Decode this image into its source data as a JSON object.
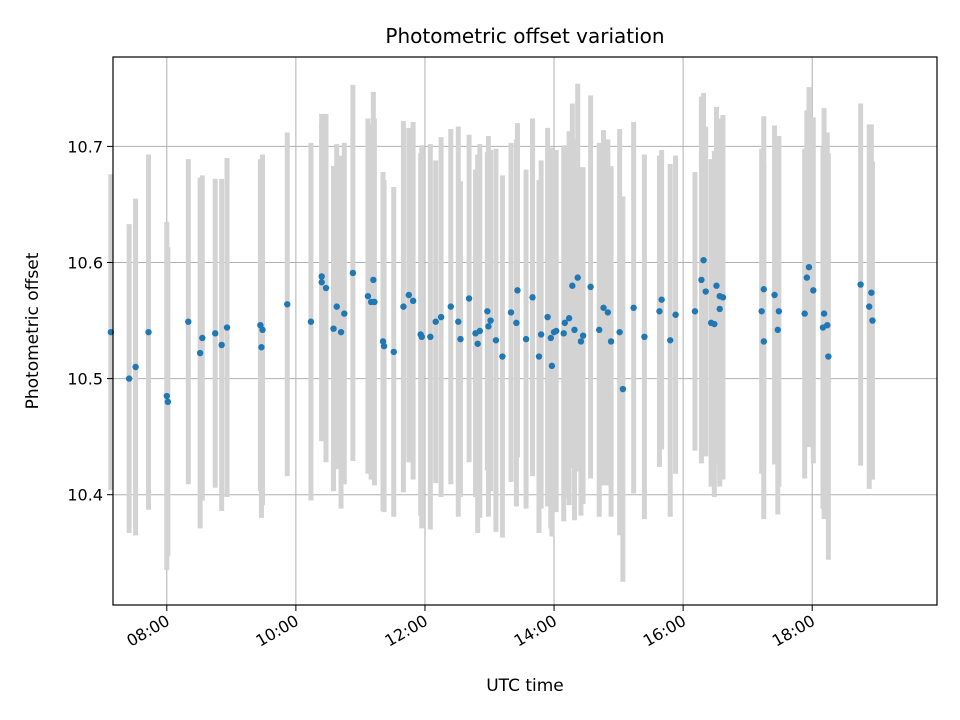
{
  "chart_data": {
    "type": "scatter",
    "title": "Photometric offset variation",
    "xlabel": "UTC time",
    "ylabel": "Photometric offset",
    "grid": true,
    "legend": "none",
    "xlim": [
      "07:10",
      "19:56"
    ],
    "ylim": [
      10.305,
      10.777
    ],
    "x_ticks": [
      "08:00",
      "10:00",
      "12:00",
      "14:00",
      "16:00",
      "18:00"
    ],
    "y_ticks": [
      "10.4",
      "10.5",
      "10.6",
      "10.7"
    ],
    "colors": {
      "points": "#1f77b4",
      "errorbars": "#d3d3d3",
      "grid": "#b0b0b0"
    },
    "series": [
      {
        "x": [
          "07:08",
          "07:25",
          "07:31",
          "07:43",
          "08:00",
          "08:01",
          "08:20",
          "08:31",
          "08:33",
          "08:45",
          "08:51",
          "08:56",
          "09:27",
          "09:28",
          "09:29",
          "09:52",
          "10:14",
          "10:24",
          "10:24",
          "10:28",
          "10:35",
          "10:38",
          "10:42",
          "10:45",
          "10:53",
          "11:07",
          "11:10",
          "11:12",
          "11:13",
          "11:21",
          "11:22",
          "11:31",
          "11:40",
          "11:45",
          "11:49",
          "11:56",
          "11:57",
          "12:05",
          "12:10",
          "12:15",
          "12:24",
          "12:31",
          "12:33",
          "12:41",
          "12:47",
          "12:49",
          "12:51",
          "12:58",
          "12:59",
          "13:01",
          "13:06",
          "13:12",
          "13:20",
          "13:25",
          "13:26",
          "13:34",
          "13:40",
          "13:46",
          "13:48",
          "13:54",
          "13:57",
          "13:58",
          "14:00",
          "14:02",
          "14:09",
          "14:10",
          "14:14",
          "14:17",
          "14:19",
          "14:22",
          "14:25",
          "14:27",
          "14:34",
          "14:42",
          "14:46",
          "14:50",
          "14:53",
          "15:01",
          "15:04",
          "15:14",
          "15:24",
          "15:38",
          "15:40",
          "15:48",
          "15:53",
          "16:11",
          "16:17",
          "16:19",
          "16:21",
          "16:26",
          "16:29",
          "16:31",
          "16:34",
          "16:34",
          "16:37",
          "17:13",
          "17:15",
          "17:15",
          "17:25",
          "17:28",
          "17:29",
          "17:53",
          "17:55",
          "17:57",
          "18:01",
          "18:10",
          "18:11",
          "18:14",
          "18:15",
          "18:45",
          "18:53",
          "18:55",
          "18:56"
        ],
        "y": [
          10.54,
          10.5,
          10.51,
          10.54,
          10.485,
          10.48,
          10.549,
          10.522,
          10.535,
          10.539,
          10.529,
          10.544,
          10.546,
          10.527,
          10.542,
          10.564,
          10.549,
          10.583,
          10.588,
          10.578,
          10.543,
          10.562,
          10.54,
          10.556,
          10.591,
          10.571,
          10.566,
          10.585,
          10.566,
          10.532,
          10.528,
          10.523,
          10.562,
          10.572,
          10.567,
          10.538,
          10.536,
          10.536,
          10.549,
          10.553,
          10.562,
          10.549,
          10.534,
          10.569,
          10.539,
          10.53,
          10.541,
          10.558,
          10.545,
          10.55,
          10.533,
          10.519,
          10.557,
          10.548,
          10.576,
          10.534,
          10.57,
          10.519,
          10.538,
          10.553,
          10.535,
          10.511,
          10.54,
          10.541,
          10.539,
          10.548,
          10.552,
          10.58,
          10.542,
          10.587,
          10.532,
          10.537,
          10.579,
          10.542,
          10.561,
          10.557,
          10.532,
          10.54,
          10.491,
          10.561,
          10.536,
          10.558,
          10.568,
          10.533,
          10.555,
          10.558,
          10.585,
          10.602,
          10.575,
          10.548,
          10.547,
          10.58,
          10.571,
          10.56,
          10.57,
          10.558,
          10.532,
          10.577,
          10.572,
          10.542,
          10.558,
          10.556,
          10.587,
          10.596,
          10.576,
          10.544,
          10.556,
          10.546,
          10.519,
          10.581,
          10.562,
          10.574,
          10.55
        ],
        "yerr": [
          0.136,
          0.133,
          0.145,
          0.153,
          0.15,
          0.133,
          0.14,
          0.151,
          0.14,
          0.133,
          0.143,
          0.146,
          0.143,
          0.147,
          0.151,
          0.148,
          0.154,
          0.137,
          0.14,
          0.15,
          0.14,
          0.14,
          0.152,
          0.147,
          0.162,
          0.153,
          0.153,
          0.162,
          0.158,
          0.146,
          0.143,
          0.142,
          0.16,
          0.144,
          0.154,
          0.156,
          0.165,
          0.166,
          0.139,
          0.155,
          0.153,
          0.168,
          0.136,
          0.141,
          0.141,
          0.163,
          0.161,
          0.137,
          0.164,
          0.147,
          0.165,
          0.156,
          0.146,
          0.158,
          0.144,
          0.146,
          0.154,
          0.152,
          0.15,
          0.163,
          0.164,
          0.147,
          0.149,
          0.156,
          0.162,
          0.151,
          0.161,
          0.157,
          0.164,
          0.167,
          0.15,
          0.145,
          0.165,
          0.161,
          0.153,
          0.149,
          0.151,
          0.175,
          0.166,
          0.16,
          0.157,
          0.134,
          0.129,
          0.152,
          0.137,
          0.12,
          0.158,
          0.144,
          0.142,
          0.141,
          0.149,
          0.154,
          0.153,
          0.153,
          0.157,
          0.14,
          0.153,
          0.149,
          0.146,
          0.159,
          0.151,
          0.142,
          0.144,
          0.155,
          0.149,
          0.156,
          0.177,
          0.166,
          0.175,
          0.156,
          0.157,
          0.145,
          0.137
        ]
      }
    ]
  }
}
